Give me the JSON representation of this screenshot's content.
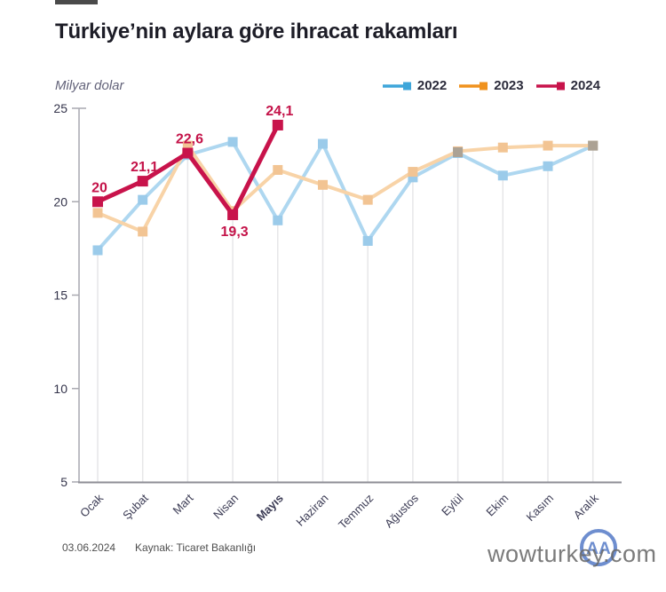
{
  "header": {
    "title": "Türkiye’nin aylara göre ihracat rakamları"
  },
  "chart_data": {
    "type": "line",
    "title": "Türkiye’nin aylara göre ihracat rakamları",
    "unit_label": "Milyar dolar",
    "categories": [
      "Ocak",
      "Şubat",
      "Mart",
      "Nisan",
      "Mayıs",
      "Haziran",
      "Temmuz",
      "Ağustos",
      "Eylül",
      "Ekim",
      "Kasım",
      "Aralık"
    ],
    "bold_category": "Mayıs",
    "y_ticks": [
      25,
      20,
      15,
      10,
      5
    ],
    "ylim": [
      5,
      25
    ],
    "grid": "vertical-drop-lines",
    "legend_position": "top-right",
    "series": [
      {
        "name": "2022",
        "legend_color": "#3ea6da",
        "line_color": "#aed7f0",
        "marker_color": "#9bcbea",
        "values": [
          17.4,
          20.1,
          22.5,
          23.2,
          19.0,
          23.1,
          17.9,
          21.3,
          22.6,
          21.4,
          21.9,
          23.0
        ]
      },
      {
        "name": "2023",
        "legend_color": "#f0921e",
        "line_color": "#f8d3a7",
        "marker_color": "#f2c493",
        "values": [
          19.4,
          18.4,
          23.0,
          19.5,
          21.7,
          20.9,
          20.1,
          21.6,
          22.7,
          22.9,
          23.0,
          23.0
        ]
      },
      {
        "name": "2024",
        "legend_color": "#c8134b",
        "line_color": "#c8134b",
        "marker_color": "#c8134b",
        "values": [
          20.0,
          21.1,
          22.6,
          19.3,
          24.1
        ],
        "labels": [
          "20",
          "21,1",
          "22,6",
          "19,3",
          "24,1"
        ],
        "label_positions": [
          "above",
          "above",
          "above",
          "below",
          "above"
        ]
      }
    ],
    "colors": {
      "axis": "#a9a9b0",
      "baseline": "#8f8f96",
      "drop_line": "#e6e6e8",
      "tick_label": "#33334a",
      "month_label": "#3c3c55",
      "data_label": "#c41349",
      "overlap_marker": "#aca294"
    }
  },
  "footer": {
    "date": "03.06.2024",
    "source": "Kaynak: Ticaret Bakanlığı"
  },
  "watermark": {
    "text": "wowturkey.com",
    "logo_text": "AA"
  }
}
